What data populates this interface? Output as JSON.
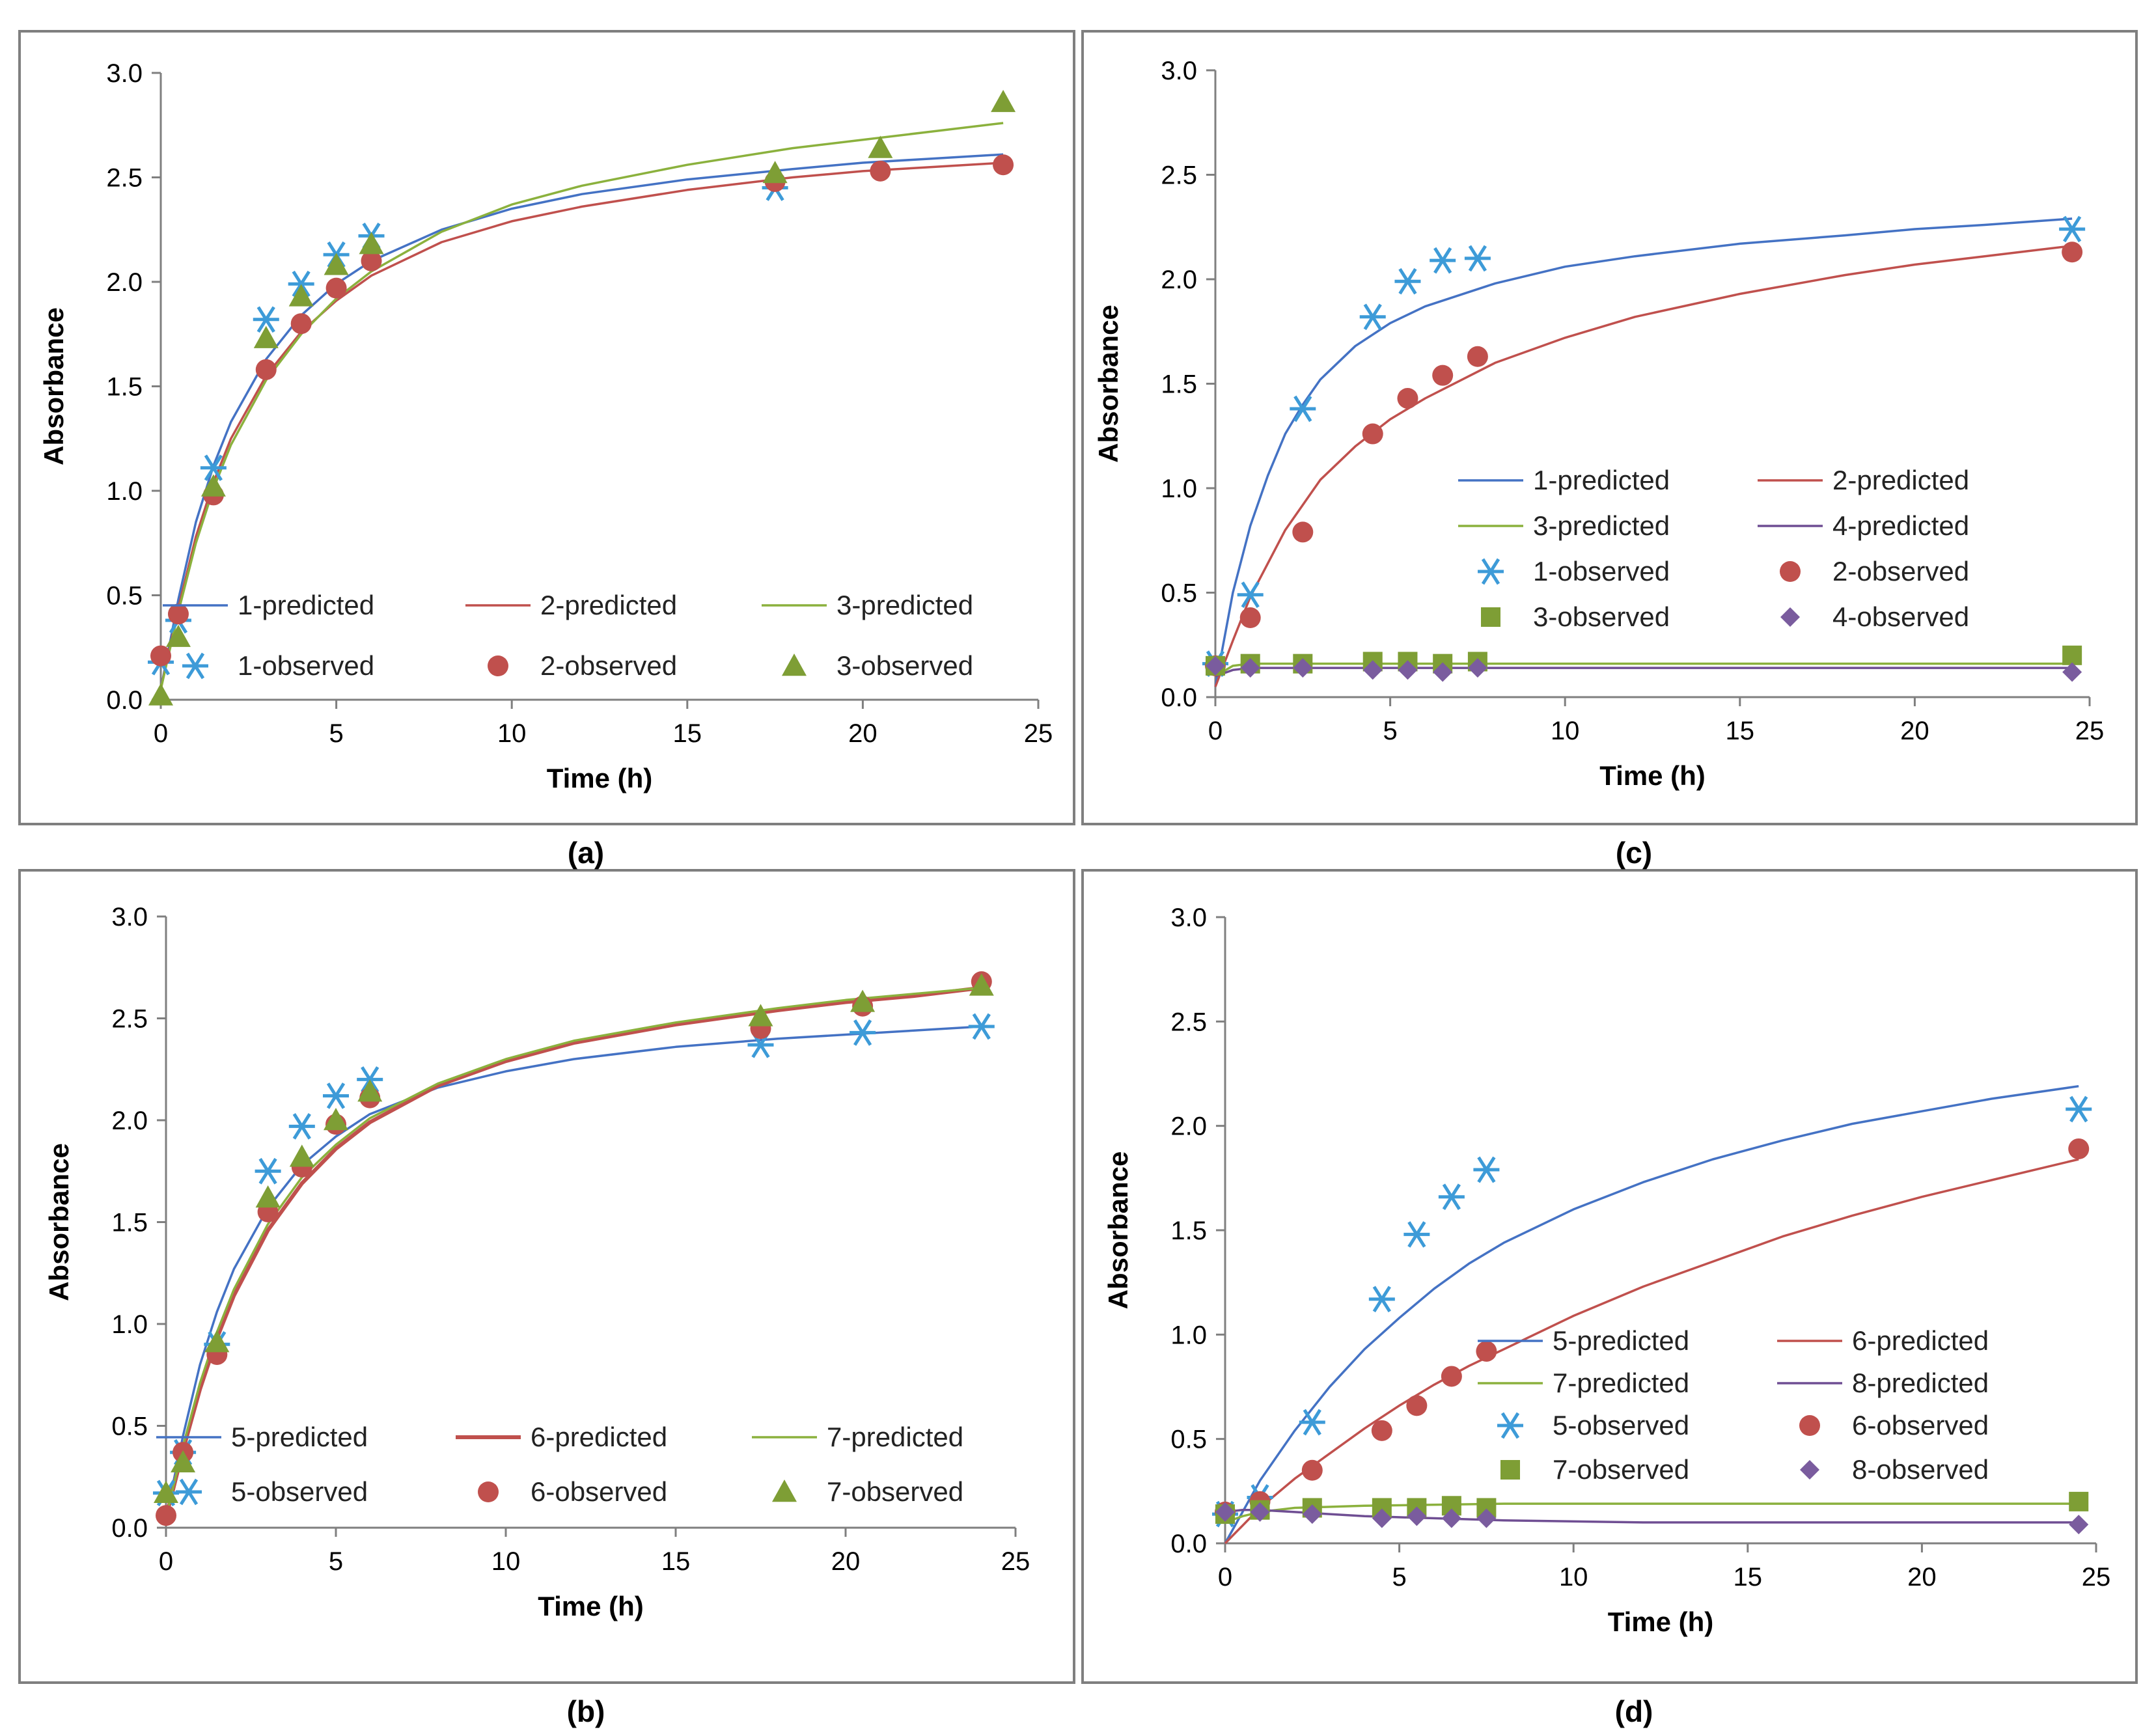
{
  "colors": {
    "blue": "#4472C4",
    "red": "#C0504D",
    "green": "#8BB13D",
    "purple": "#6F4E93",
    "cyan_marker": "#3D9BD8",
    "red_marker": "#C0504D",
    "green_marker": "#7E9E35",
    "purple_marker": "#7A5C9E"
  },
  "chart_data": [
    {
      "id": "a",
      "type": "scatter",
      "caption": "(a)",
      "xlabel": "Time (h)",
      "ylabel": "Absorbance",
      "xlim": [
        0,
        25
      ],
      "ylim": [
        0,
        3
      ],
      "xticks": [
        "0",
        "5",
        "10",
        "15",
        "20",
        "25"
      ],
      "yticks": [
        "0.0",
        "0.5",
        "1.0",
        "1.5",
        "2.0",
        "2.5",
        "3.0"
      ],
      "legend_position": "lower-right",
      "series": [
        {
          "name": "1-predicted",
          "kind": "line",
          "color": "blue",
          "x": [
            0,
            0.5,
            1,
            1.5,
            2,
            3,
            4,
            5,
            6,
            8,
            10,
            12,
            15,
            18,
            20,
            22,
            24
          ],
          "y": [
            0.05,
            0.48,
            0.85,
            1.12,
            1.33,
            1.63,
            1.84,
            1.99,
            2.1,
            2.25,
            2.35,
            2.42,
            2.49,
            2.54,
            2.57,
            2.59,
            2.61
          ]
        },
        {
          "name": "2-predicted",
          "kind": "line",
          "color": "red",
          "x": [
            0,
            0.5,
            1,
            1.5,
            2,
            3,
            4,
            5,
            6,
            8,
            10,
            12,
            15,
            18,
            20,
            22,
            24
          ],
          "y": [
            0.05,
            0.44,
            0.78,
            1.04,
            1.25,
            1.55,
            1.76,
            1.91,
            2.03,
            2.19,
            2.29,
            2.36,
            2.44,
            2.5,
            2.53,
            2.55,
            2.57
          ]
        },
        {
          "name": "3-predicted",
          "kind": "line",
          "color": "green",
          "x": [
            0,
            0.5,
            1,
            1.5,
            2,
            3,
            4,
            5,
            6,
            8,
            10,
            12,
            15,
            18,
            20,
            22,
            24
          ],
          "y": [
            0.05,
            0.42,
            0.75,
            1.01,
            1.22,
            1.53,
            1.75,
            1.92,
            2.05,
            2.24,
            2.37,
            2.46,
            2.56,
            2.64,
            2.68,
            2.72,
            2.76
          ]
        },
        {
          "name": "1-observed",
          "kind": "marker",
          "marker": "asterisk",
          "color": "cyan_marker",
          "x": [
            0,
            0.5,
            1.5,
            3,
            4,
            5,
            6,
            17.5
          ],
          "y": [
            0.18,
            0.38,
            1.11,
            1.82,
            1.99,
            2.13,
            2.22,
            2.45
          ]
        },
        {
          "name": "2-observed",
          "kind": "marker",
          "marker": "circle",
          "color": "red_marker",
          "x": [
            0,
            0.5,
            1.5,
            3,
            4,
            5,
            6,
            17.5,
            20.5,
            24
          ],
          "y": [
            0.21,
            0.41,
            0.98,
            1.58,
            1.8,
            1.97,
            2.1,
            2.48,
            2.53,
            2.56
          ]
        },
        {
          "name": "3-observed",
          "kind": "marker",
          "marker": "triangle",
          "color": "green_marker",
          "x": [
            0,
            0.5,
            1.5,
            3,
            4,
            5,
            6,
            17.5,
            20.5,
            24
          ],
          "y": [
            0.02,
            0.3,
            1.02,
            1.73,
            1.93,
            2.08,
            2.18,
            2.52,
            2.64,
            2.86
          ]
        }
      ]
    },
    {
      "id": "b",
      "type": "scatter",
      "caption": "(b)",
      "xlabel": "Time (h)",
      "ylabel": "Absorbance",
      "xlim": [
        0,
        25
      ],
      "ylim": [
        0,
        3
      ],
      "xticks": [
        "0",
        "5",
        "10",
        "15",
        "20",
        "25"
      ],
      "yticks": [
        "0.0",
        "0.5",
        "1.0",
        "1.5",
        "2.0",
        "2.5",
        "3.0"
      ],
      "legend_position": "lower-right",
      "series": [
        {
          "name": "5-predicted",
          "kind": "line",
          "color": "blue",
          "x": [
            0,
            0.5,
            1,
            1.5,
            2,
            3,
            4,
            5,
            6,
            8,
            10,
            12,
            15,
            18,
            20,
            22,
            24
          ],
          "y": [
            0.05,
            0.45,
            0.8,
            1.06,
            1.27,
            1.57,
            1.78,
            1.92,
            2.03,
            2.16,
            2.24,
            2.3,
            2.36,
            2.4,
            2.42,
            2.44,
            2.46
          ]
        },
        {
          "name": "6-predicted",
          "kind": "line",
          "color": "red",
          "x": [
            0,
            0.5,
            1,
            1.5,
            2,
            3,
            4,
            5,
            6,
            8,
            10,
            12,
            15,
            18,
            20,
            22,
            24
          ],
          "y": [
            0.05,
            0.38,
            0.68,
            0.93,
            1.14,
            1.46,
            1.69,
            1.86,
            1.99,
            2.17,
            2.29,
            2.38,
            2.47,
            2.54,
            2.58,
            2.61,
            2.65
          ]
        },
        {
          "name": "7-predicted",
          "kind": "line",
          "color": "green",
          "x": [
            0,
            0.5,
            1,
            1.5,
            2,
            3,
            4,
            5,
            6,
            8,
            10,
            12,
            15,
            18,
            20,
            22,
            24
          ],
          "y": [
            0.05,
            0.4,
            0.71,
            0.96,
            1.17,
            1.49,
            1.72,
            1.88,
            2.01,
            2.18,
            2.3,
            2.39,
            2.48,
            2.55,
            2.59,
            2.62,
            2.65
          ]
        },
        {
          "name": "5-observed",
          "kind": "marker",
          "marker": "asterisk",
          "color": "cyan_marker",
          "x": [
            0,
            0.5,
            1.5,
            3,
            4,
            5,
            6,
            17.5,
            20.5,
            24
          ],
          "y": [
            0.17,
            0.37,
            0.9,
            1.75,
            1.97,
            2.12,
            2.2,
            2.37,
            2.43,
            2.46
          ]
        },
        {
          "name": "6-observed",
          "kind": "marker",
          "marker": "circle",
          "color": "red_marker",
          "x": [
            0,
            0.5,
            1.5,
            3,
            4,
            5,
            6,
            17.5,
            20.5,
            24
          ],
          "y": [
            0.06,
            0.37,
            0.85,
            1.55,
            1.77,
            1.98,
            2.11,
            2.45,
            2.56,
            2.68
          ]
        },
        {
          "name": "7-observed",
          "kind": "marker",
          "marker": "triangle",
          "color": "green_marker",
          "x": [
            0,
            0.5,
            1.5,
            3,
            4,
            5,
            6,
            17.5,
            20.5,
            24
          ],
          "y": [
            0.17,
            0.32,
            0.91,
            1.62,
            1.82,
            2.0,
            2.14,
            2.51,
            2.58,
            2.66
          ]
        }
      ]
    },
    {
      "id": "c",
      "type": "scatter",
      "caption": "(c)",
      "xlabel": "Time (h)",
      "ylabel": "Absorbance",
      "xlim": [
        0,
        25
      ],
      "ylim": [
        0,
        3
      ],
      "xticks": [
        "0",
        "5",
        "10",
        "15",
        "20",
        "25"
      ],
      "yticks": [
        "0.0",
        "0.5",
        "1.0",
        "1.5",
        "2.0",
        "2.5",
        "3.0"
      ],
      "legend_position": "middle-right",
      "series": [
        {
          "name": "1-predicted",
          "kind": "line",
          "color": "blue",
          "x": [
            0,
            0.5,
            1,
            1.5,
            2,
            2.5,
            3,
            4,
            5,
            6,
            8,
            10,
            12,
            15,
            18,
            20,
            22,
            24.5
          ],
          "y": [
            0.05,
            0.5,
            0.82,
            1.06,
            1.26,
            1.4,
            1.52,
            1.68,
            1.79,
            1.87,
            1.98,
            2.06,
            2.11,
            2.17,
            2.21,
            2.24,
            2.26,
            2.29
          ]
        },
        {
          "name": "2-predicted",
          "kind": "line",
          "color": "red",
          "x": [
            0,
            0.5,
            1,
            1.5,
            2,
            2.5,
            3,
            4,
            5,
            6,
            8,
            10,
            12,
            15,
            18,
            20,
            22,
            24.5
          ],
          "y": [
            0.05,
            0.27,
            0.48,
            0.64,
            0.8,
            0.92,
            1.04,
            1.2,
            1.33,
            1.43,
            1.6,
            1.72,
            1.82,
            1.93,
            2.02,
            2.07,
            2.11,
            2.16
          ]
        },
        {
          "name": "3-predicted",
          "kind": "line",
          "color": "green",
          "x": [
            0,
            0.5,
            1,
            2,
            4,
            8,
            12,
            16,
            20,
            24.5
          ],
          "y": [
            0.1,
            0.15,
            0.16,
            0.16,
            0.16,
            0.16,
            0.16,
            0.16,
            0.16,
            0.16
          ]
        },
        {
          "name": "4-predicted",
          "kind": "line",
          "color": "purple",
          "x": [
            0,
            0.5,
            1,
            2,
            4,
            8,
            12,
            16,
            20,
            24.5
          ],
          "y": [
            0.1,
            0.13,
            0.14,
            0.14,
            0.14,
            0.14,
            0.14,
            0.14,
            0.14,
            0.14
          ]
        },
        {
          "name": "1-observed",
          "kind": "marker",
          "marker": "asterisk",
          "color": "cyan_marker",
          "x": [
            0,
            1,
            2.5,
            4.5,
            5.5,
            6.5,
            7.5,
            24.5
          ],
          "y": [
            0.16,
            0.49,
            1.38,
            1.82,
            1.99,
            2.09,
            2.1,
            2.24
          ]
        },
        {
          "name": "2-observed",
          "kind": "marker",
          "marker": "circle",
          "color": "red_marker",
          "x": [
            0,
            1,
            2.5,
            4.5,
            5.5,
            6.5,
            7.5,
            24.5
          ],
          "y": [
            0.15,
            0.38,
            0.79,
            1.26,
            1.43,
            1.54,
            1.63,
            2.13
          ]
        },
        {
          "name": "3-observed",
          "kind": "marker",
          "marker": "square",
          "color": "green_marker",
          "x": [
            0,
            1,
            2.5,
            4.5,
            5.5,
            6.5,
            7.5,
            24.5
          ],
          "y": [
            0.15,
            0.16,
            0.16,
            0.17,
            0.17,
            0.16,
            0.17,
            0.2
          ]
        },
        {
          "name": "4-observed",
          "kind": "marker",
          "marker": "diamond",
          "color": "purple_marker",
          "x": [
            0,
            1,
            2.5,
            4.5,
            5.5,
            6.5,
            7.5,
            24.5
          ],
          "y": [
            0.15,
            0.14,
            0.14,
            0.13,
            0.13,
            0.12,
            0.14,
            0.12
          ]
        }
      ]
    },
    {
      "id": "d",
      "type": "scatter",
      "caption": "(d)",
      "xlabel": "Time (h)",
      "ylabel": "Absorbance",
      "xlim": [
        0,
        25
      ],
      "ylim": [
        0,
        3
      ],
      "xticks": [
        "0",
        "5",
        "10",
        "15",
        "20",
        "25"
      ],
      "yticks": [
        "0.0",
        "0.5",
        "1.0",
        "1.5",
        "2.0",
        "2.5",
        "3.0"
      ],
      "legend_position": "lower-right",
      "series": [
        {
          "name": "5-predicted",
          "kind": "line",
          "color": "blue",
          "x": [
            0,
            1,
            2,
            3,
            4,
            5,
            6,
            7,
            8,
            10,
            12,
            14,
            16,
            18,
            20,
            22,
            24.5
          ],
          "y": [
            0.0,
            0.3,
            0.54,
            0.75,
            0.93,
            1.08,
            1.22,
            1.34,
            1.44,
            1.6,
            1.73,
            1.84,
            1.93,
            2.01,
            2.07,
            2.13,
            2.19
          ]
        },
        {
          "name": "6-predicted",
          "kind": "line",
          "color": "red",
          "x": [
            0,
            1,
            2,
            3,
            4,
            5,
            6,
            7,
            8,
            10,
            12,
            14,
            16,
            18,
            20,
            22,
            24.5
          ],
          "y": [
            0.0,
            0.17,
            0.31,
            0.43,
            0.55,
            0.66,
            0.76,
            0.85,
            0.93,
            1.09,
            1.23,
            1.35,
            1.47,
            1.57,
            1.66,
            1.74,
            1.84
          ]
        },
        {
          "name": "7-predicted",
          "kind": "line",
          "color": "green",
          "x": [
            0,
            0.5,
            1,
            2,
            4,
            8,
            12,
            16,
            20,
            24.5
          ],
          "y": [
            0.1,
            0.13,
            0.15,
            0.17,
            0.18,
            0.19,
            0.19,
            0.19,
            0.19,
            0.19
          ]
        },
        {
          "name": "8-predicted",
          "kind": "line",
          "color": "purple",
          "x": [
            0,
            0.5,
            1,
            2,
            4,
            8,
            12,
            16,
            20,
            24.5
          ],
          "y": [
            0.15,
            0.16,
            0.16,
            0.15,
            0.13,
            0.11,
            0.1,
            0.1,
            0.1,
            0.1
          ]
        },
        {
          "name": "5-observed",
          "kind": "marker",
          "marker": "asterisk",
          "color": "cyan_marker",
          "x": [
            0,
            1,
            2.5,
            4.5,
            5.5,
            6.5,
            7.5,
            24.5
          ],
          "y": [
            0.14,
            0.22,
            0.58,
            1.17,
            1.48,
            1.66,
            1.79,
            2.08
          ]
        },
        {
          "name": "6-observed",
          "kind": "marker",
          "marker": "circle",
          "color": "red_marker",
          "x": [
            0,
            1,
            2.5,
            4.5,
            5.5,
            6.5,
            7.5,
            24.5
          ],
          "y": [
            0.15,
            0.2,
            0.35,
            0.54,
            0.66,
            0.8,
            0.92,
            1.89
          ]
        },
        {
          "name": "7-observed",
          "kind": "marker",
          "marker": "square",
          "color": "green_marker",
          "x": [
            0,
            1,
            2.5,
            4.5,
            5.5,
            6.5,
            7.5,
            24.5
          ],
          "y": [
            0.14,
            0.16,
            0.17,
            0.17,
            0.17,
            0.18,
            0.17,
            0.2
          ]
        },
        {
          "name": "8-observed",
          "kind": "marker",
          "marker": "diamond",
          "color": "purple_marker",
          "x": [
            0,
            1,
            2.5,
            4.5,
            5.5,
            6.5,
            7.5,
            24.5
          ],
          "y": [
            0.15,
            0.15,
            0.14,
            0.12,
            0.13,
            0.12,
            0.12,
            0.09
          ]
        }
      ]
    }
  ]
}
